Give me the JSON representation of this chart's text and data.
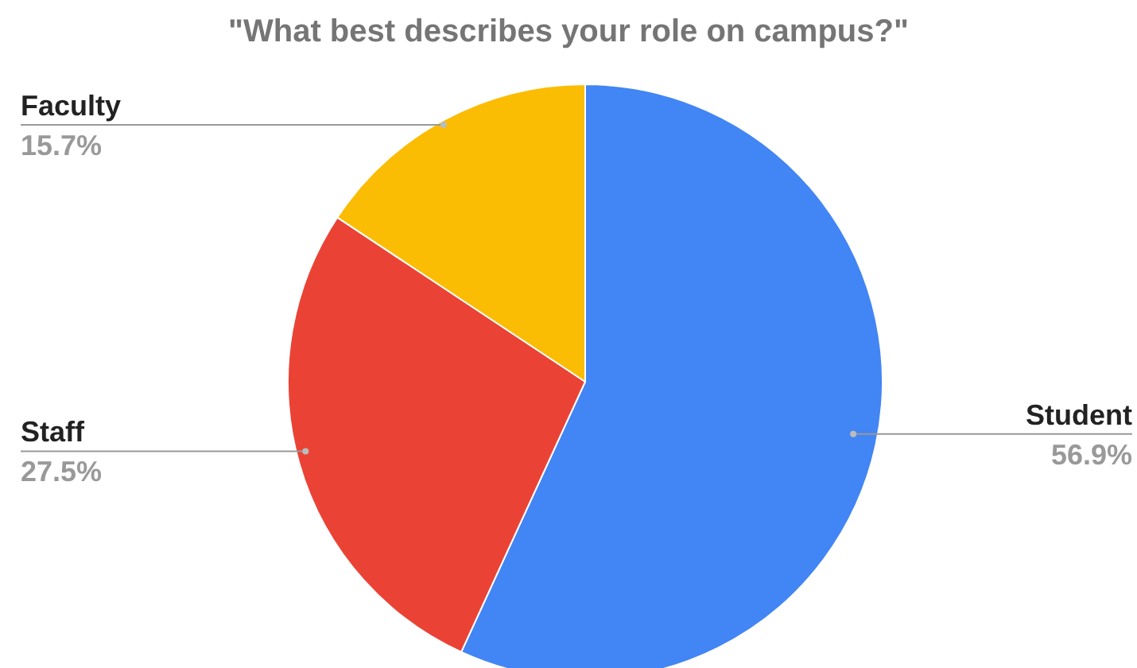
{
  "chart_data": {
    "type": "pie",
    "title": "\"What best describes your role on campus?\"",
    "categories": [
      "Student",
      "Staff",
      "Faculty"
    ],
    "values": [
      56.9,
      27.5,
      15.7
    ],
    "value_labels": [
      "56.9%",
      "27.5%",
      "15.7%"
    ],
    "colors": [
      "#4285f4",
      "#ea4335",
      "#fbbc04"
    ],
    "legend": false
  }
}
